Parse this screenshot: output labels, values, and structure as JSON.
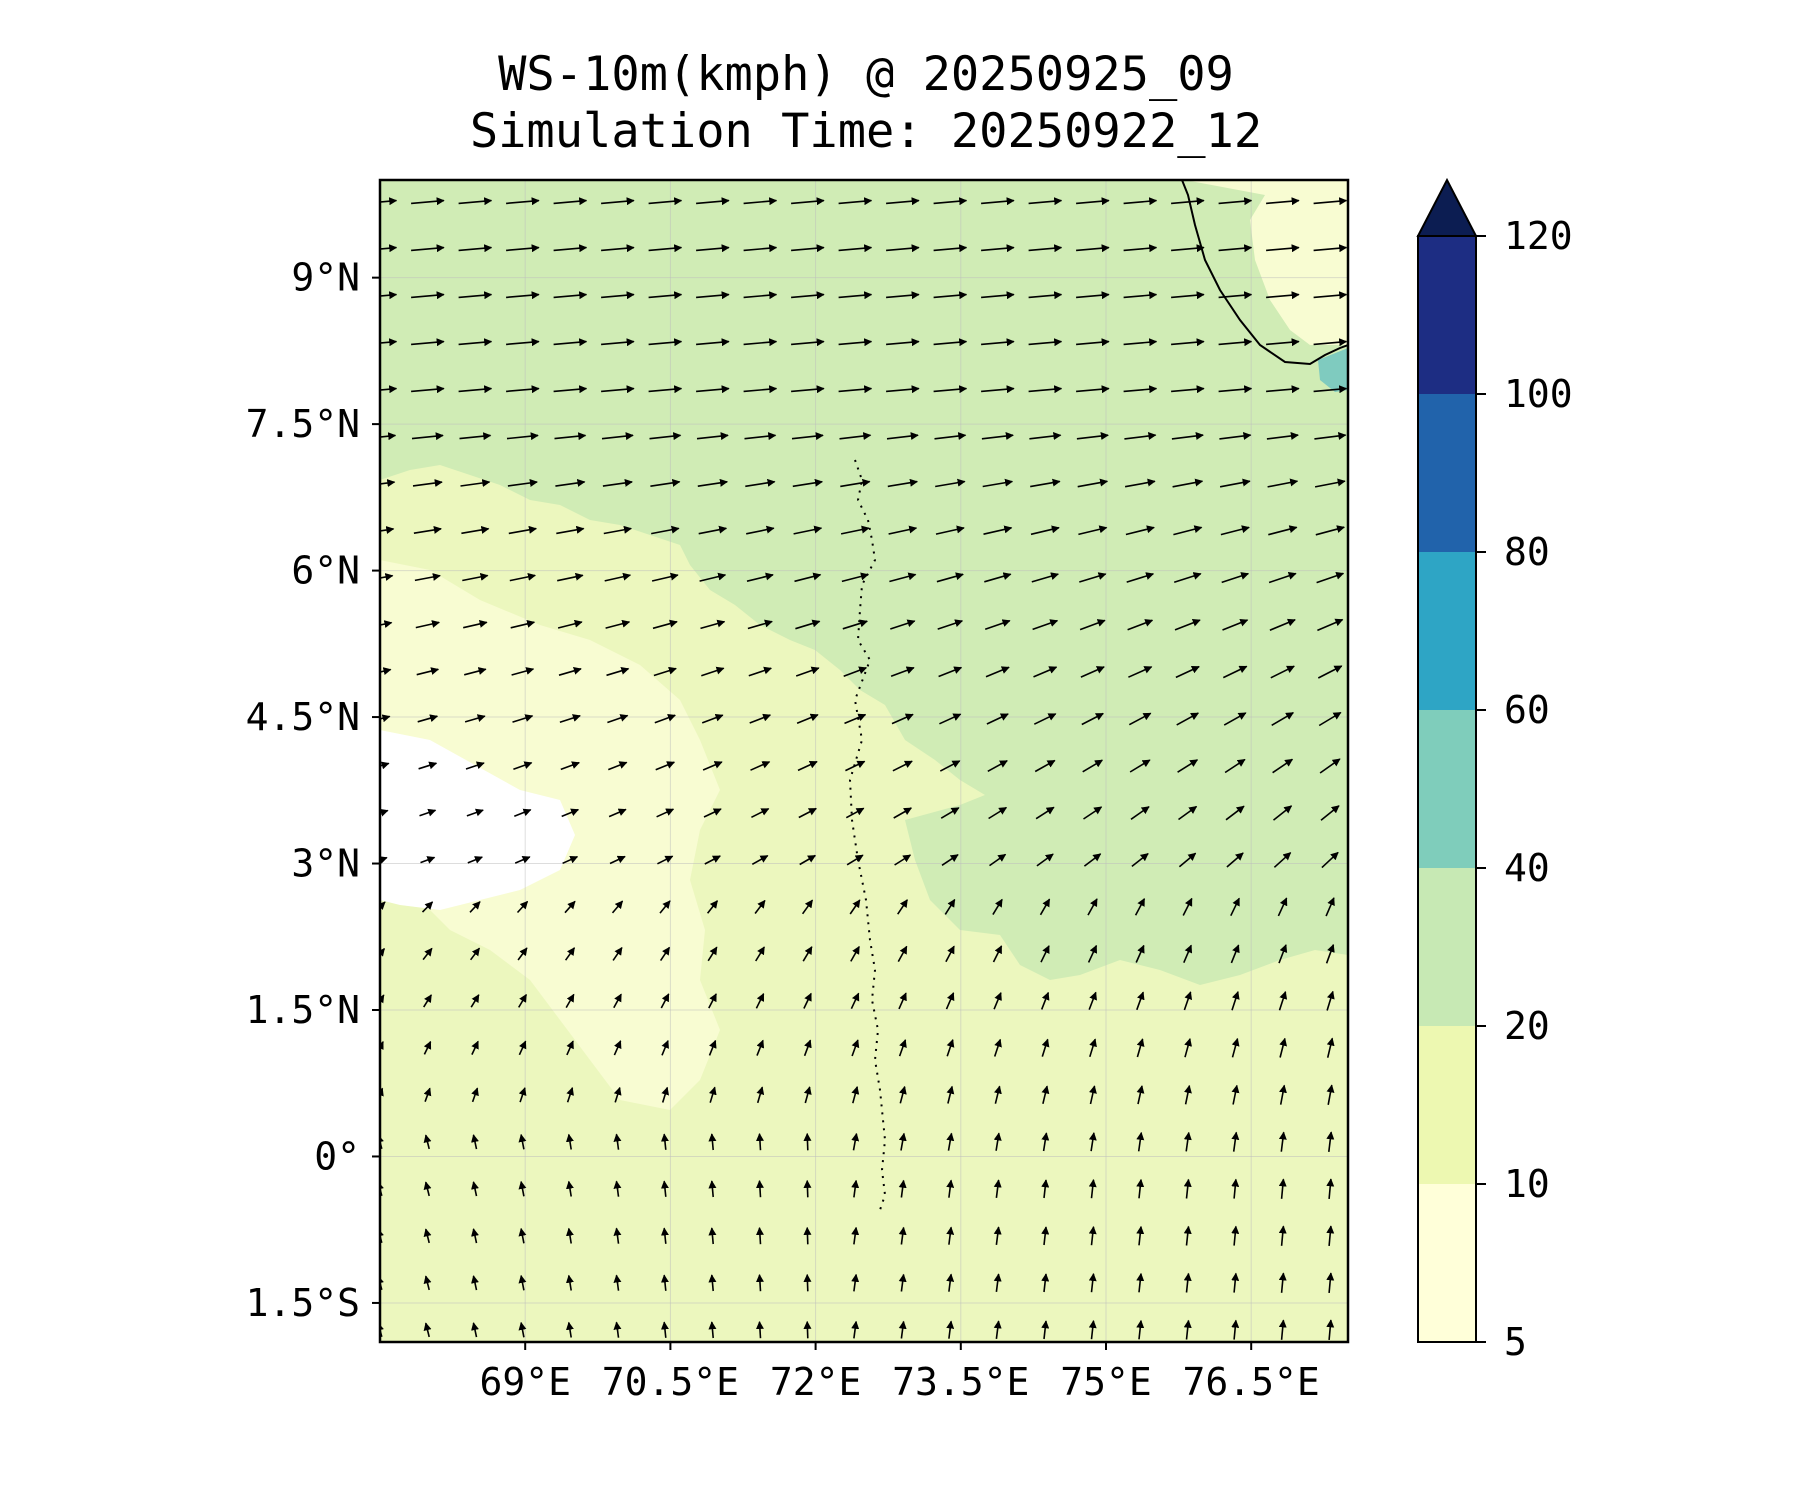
{
  "title": {
    "line1": "WS-10m(kmph) @ 20250925_09",
    "line2": "Simulation Time: 20250922_12"
  },
  "map": {
    "lon_range": [
      67.5,
      77.5
    ],
    "lat_range": [
      -1.9,
      10.0
    ],
    "lon_ticks": [
      {
        "value": 69.0,
        "label": "69°E"
      },
      {
        "value": 70.5,
        "label": "70.5°E"
      },
      {
        "value": 72.0,
        "label": "72°E"
      },
      {
        "value": 73.5,
        "label": "73.5°E"
      },
      {
        "value": 75.0,
        "label": "75°E"
      },
      {
        "value": 76.5,
        "label": "76.5°E"
      }
    ],
    "lat_ticks": [
      {
        "value": 9.0,
        "label": "9°N"
      },
      {
        "value": 7.5,
        "label": "7.5°N"
      },
      {
        "value": 6.0,
        "label": "6°N"
      },
      {
        "value": 4.5,
        "label": "4.5°N"
      },
      {
        "value": 3.0,
        "label": "3°N"
      },
      {
        "value": 1.5,
        "label": "1.5°N"
      },
      {
        "value": 0.0,
        "label": "0°"
      },
      {
        "value": -1.5,
        "label": "1.5°S"
      }
    ],
    "regions": [
      {
        "name": "high-wind-north",
        "class": "20-40 kmph",
        "color": "#d0ecb5"
      },
      {
        "name": "moderate-wind-south",
        "class": "10-20 kmph",
        "color": "#ecf7be"
      },
      {
        "name": "low-wind-patches",
        "class": "5-10 kmph",
        "color": "#f8fcd2"
      },
      {
        "name": "calm-zone",
        "class": "<5 kmph",
        "color": "#ffffff"
      },
      {
        "name": "coastal-patch",
        "class": "40-60 kmph",
        "color": "#7fcbbf"
      }
    ]
  },
  "colorbar": {
    "levels": [
      {
        "value": 5,
        "label": "5",
        "color": "#ffffd9"
      },
      {
        "value": 10,
        "label": "10",
        "color": "#edf8b1"
      },
      {
        "value": 20,
        "label": "20",
        "color": "#c7e9b4"
      },
      {
        "value": 40,
        "label": "40",
        "color": "#7fcdbb"
      },
      {
        "value": 60,
        "label": "60",
        "color": "#2ea5c5"
      },
      {
        "value": 80,
        "label": "80",
        "color": "#2163ab"
      },
      {
        "value": 100,
        "label": "100",
        "color": "#1d2d83"
      },
      {
        "value": 120,
        "label": "120",
        "color": "#0c1d52"
      }
    ],
    "extend": "max"
  }
}
